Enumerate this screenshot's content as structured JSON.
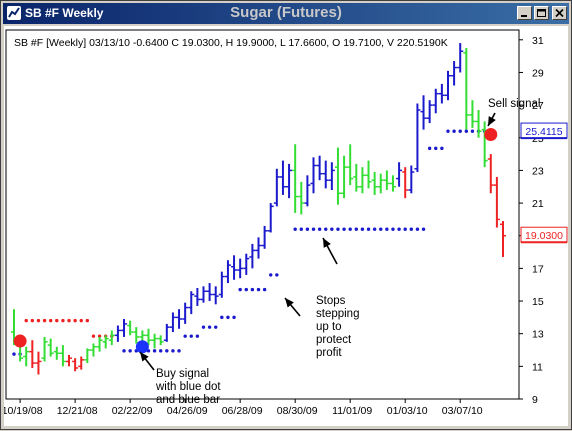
{
  "window": {
    "title": "SB #F Weekly",
    "center_title": "Sugar (Futures)",
    "icons": [
      "chart-app-icon",
      "minimize-icon",
      "maximize-icon",
      "close-icon"
    ]
  },
  "colors": {
    "up_bar": "#33dd33",
    "down_bar": "#ee2222",
    "neutral_bar": "#1a1acc",
    "stop_dot_blue": "#1a1acc",
    "stop_dot_red": "#ee2222",
    "sell_dot": "#ee2222",
    "buy_dot": "#1a33ff"
  },
  "chart_data": {
    "type": "ohlc",
    "title": "SB #F [Weekly] 03/13/10 -0.6400 C 19.0300, H 19.9000, L 17.6600, O 19.7100, V 220.5190K",
    "ylim": [
      9,
      31.6
    ],
    "y_ticks": [
      9,
      11,
      13,
      15,
      17,
      19,
      21,
      23,
      25,
      27,
      29,
      31
    ],
    "x_tick_labels": [
      "10/19/08",
      "12/21/08",
      "02/22/09",
      "04/26/09",
      "06/28/09",
      "08/30/09",
      "11/01/09",
      "01/03/10",
      "03/07/10"
    ],
    "price_tags": [
      {
        "label": "25.4115",
        "value": 25.41,
        "color": "#1a1acc"
      },
      {
        "label": "19.0300",
        "value": 19.03,
        "color": "#ee2222"
      }
    ],
    "bars": [
      {
        "o": 13.1,
        "h": 14.5,
        "l": 12.3,
        "c": 12.6,
        "color": "green"
      },
      {
        "o": 12.6,
        "h": 12.9,
        "l": 11.3,
        "c": 11.5,
        "color": "green"
      },
      {
        "o": 11.6,
        "h": 12.2,
        "l": 11.0,
        "c": 11.9,
        "color": "green"
      },
      {
        "o": 11.9,
        "h": 12.6,
        "l": 10.9,
        "c": 11.2,
        "color": "red"
      },
      {
        "o": 11.2,
        "h": 11.9,
        "l": 10.5,
        "c": 11.3,
        "color": "red"
      },
      {
        "o": 11.5,
        "h": 12.8,
        "l": 11.3,
        "c": 12.5,
        "color": "green"
      },
      {
        "o": 12.3,
        "h": 12.7,
        "l": 11.6,
        "c": 11.8,
        "color": "green"
      },
      {
        "o": 11.9,
        "h": 12.2,
        "l": 11.4,
        "c": 11.8,
        "color": "green"
      },
      {
        "o": 11.8,
        "h": 12.3,
        "l": 11.0,
        "c": 11.3,
        "color": "green"
      },
      {
        "o": 11.3,
        "h": 11.7,
        "l": 11.0,
        "c": 11.5,
        "color": "red"
      },
      {
        "o": 11.3,
        "h": 11.5,
        "l": 10.7,
        "c": 10.9,
        "color": "red"
      },
      {
        "o": 11.0,
        "h": 11.6,
        "l": 10.8,
        "c": 11.4,
        "color": "red"
      },
      {
        "o": 11.4,
        "h": 12.1,
        "l": 11.2,
        "c": 12.0,
        "color": "green"
      },
      {
        "o": 12.0,
        "h": 12.4,
        "l": 11.6,
        "c": 12.2,
        "color": "green"
      },
      {
        "o": 12.2,
        "h": 12.8,
        "l": 11.9,
        "c": 12.6,
        "color": "green"
      },
      {
        "o": 12.5,
        "h": 12.9,
        "l": 12.1,
        "c": 12.7,
        "color": "green"
      },
      {
        "o": 12.6,
        "h": 13.2,
        "l": 12.3,
        "c": 12.9,
        "color": "green"
      },
      {
        "o": 12.9,
        "h": 13.5,
        "l": 12.5,
        "c": 13.2,
        "color": "blue"
      },
      {
        "o": 13.2,
        "h": 13.9,
        "l": 12.8,
        "c": 13.6,
        "color": "blue"
      },
      {
        "o": 13.5,
        "h": 13.8,
        "l": 12.9,
        "c": 13.1,
        "color": "green"
      },
      {
        "o": 13.1,
        "h": 13.4,
        "l": 12.4,
        "c": 12.8,
        "color": "green"
      },
      {
        "o": 12.8,
        "h": 13.2,
        "l": 12.3,
        "c": 12.9,
        "color": "green"
      },
      {
        "o": 12.9,
        "h": 13.3,
        "l": 12.3,
        "c": 12.6,
        "color": "green"
      },
      {
        "o": 12.6,
        "h": 13.0,
        "l": 12.1,
        "c": 12.7,
        "color": "green"
      },
      {
        "o": 12.7,
        "h": 12.9,
        "l": 12.3,
        "c": 12.5,
        "color": "green"
      },
      {
        "o": 12.6,
        "h": 13.6,
        "l": 12.5,
        "c": 13.4,
        "color": "blue"
      },
      {
        "o": 13.4,
        "h": 14.3,
        "l": 13.1,
        "c": 14.0,
        "color": "blue"
      },
      {
        "o": 14.0,
        "h": 14.5,
        "l": 13.3,
        "c": 13.9,
        "color": "blue"
      },
      {
        "o": 13.9,
        "h": 14.9,
        "l": 13.6,
        "c": 14.6,
        "color": "blue"
      },
      {
        "o": 14.6,
        "h": 15.6,
        "l": 14.2,
        "c": 15.4,
        "color": "blue"
      },
      {
        "o": 15.3,
        "h": 15.8,
        "l": 14.7,
        "c": 15.1,
        "color": "blue"
      },
      {
        "o": 15.1,
        "h": 15.9,
        "l": 14.9,
        "c": 15.6,
        "color": "blue"
      },
      {
        "o": 15.6,
        "h": 16.1,
        "l": 15.0,
        "c": 15.4,
        "color": "blue"
      },
      {
        "o": 15.4,
        "h": 15.9,
        "l": 14.8,
        "c": 15.3,
        "color": "blue"
      },
      {
        "o": 15.4,
        "h": 16.8,
        "l": 15.2,
        "c": 16.5,
        "color": "blue"
      },
      {
        "o": 16.5,
        "h": 17.5,
        "l": 16.1,
        "c": 17.2,
        "color": "blue"
      },
      {
        "o": 17.1,
        "h": 17.8,
        "l": 16.3,
        "c": 16.9,
        "color": "blue"
      },
      {
        "o": 16.9,
        "h": 17.6,
        "l": 16.4,
        "c": 17.0,
        "color": "blue"
      },
      {
        "o": 17.0,
        "h": 17.9,
        "l": 16.6,
        "c": 17.6,
        "color": "blue"
      },
      {
        "o": 17.7,
        "h": 18.5,
        "l": 17.0,
        "c": 18.1,
        "color": "blue"
      },
      {
        "o": 18.1,
        "h": 18.9,
        "l": 17.6,
        "c": 18.4,
        "color": "blue"
      },
      {
        "o": 18.4,
        "h": 19.6,
        "l": 18.2,
        "c": 19.3,
        "color": "blue"
      },
      {
        "o": 19.3,
        "h": 21.0,
        "l": 19.2,
        "c": 20.8,
        "color": "blue"
      },
      {
        "o": 21.0,
        "h": 23.1,
        "l": 20.8,
        "c": 22.6,
        "color": "blue"
      },
      {
        "o": 22.6,
        "h": 23.6,
        "l": 21.5,
        "c": 22.0,
        "color": "blue"
      },
      {
        "o": 22.0,
        "h": 23.4,
        "l": 21.3,
        "c": 23.0,
        "color": "blue"
      },
      {
        "o": 23.0,
        "h": 24.6,
        "l": 20.4,
        "c": 21.4,
        "color": "green"
      },
      {
        "o": 21.4,
        "h": 22.3,
        "l": 20.3,
        "c": 21.0,
        "color": "green"
      },
      {
        "o": 21.0,
        "h": 22.7,
        "l": 20.8,
        "c": 22.1,
        "color": "blue"
      },
      {
        "o": 22.2,
        "h": 23.8,
        "l": 21.6,
        "c": 23.3,
        "color": "blue"
      },
      {
        "o": 23.3,
        "h": 23.9,
        "l": 22.4,
        "c": 22.8,
        "color": "blue"
      },
      {
        "o": 22.8,
        "h": 23.6,
        "l": 21.9,
        "c": 22.4,
        "color": "blue"
      },
      {
        "o": 22.4,
        "h": 23.5,
        "l": 21.8,
        "c": 23.0,
        "color": "blue"
      },
      {
        "o": 23.2,
        "h": 24.4,
        "l": 20.9,
        "c": 21.6,
        "color": "green"
      },
      {
        "o": 21.6,
        "h": 23.9,
        "l": 21.3,
        "c": 23.2,
        "color": "green"
      },
      {
        "o": 23.2,
        "h": 24.6,
        "l": 22.1,
        "c": 22.5,
        "color": "green"
      },
      {
        "o": 22.6,
        "h": 23.4,
        "l": 21.7,
        "c": 22.0,
        "color": "green"
      },
      {
        "o": 22.0,
        "h": 23.2,
        "l": 21.6,
        "c": 22.7,
        "color": "green"
      },
      {
        "o": 22.7,
        "h": 23.6,
        "l": 21.9,
        "c": 22.3,
        "color": "green"
      },
      {
        "o": 22.4,
        "h": 22.9,
        "l": 21.5,
        "c": 22.0,
        "color": "green"
      },
      {
        "o": 22.0,
        "h": 22.8,
        "l": 21.6,
        "c": 22.4,
        "color": "green"
      },
      {
        "o": 22.4,
        "h": 23.0,
        "l": 21.8,
        "c": 22.2,
        "color": "green"
      },
      {
        "o": 22.2,
        "h": 22.7,
        "l": 21.7,
        "c": 22.0,
        "color": "green"
      },
      {
        "o": 22.5,
        "h": 23.5,
        "l": 22.0,
        "c": 23.0,
        "color": "blue"
      },
      {
        "o": 22.9,
        "h": 23.2,
        "l": 21.3,
        "c": 21.8,
        "color": "red"
      },
      {
        "o": 21.8,
        "h": 23.3,
        "l": 21.6,
        "c": 22.9,
        "color": "blue"
      },
      {
        "o": 23.1,
        "h": 27.1,
        "l": 22.9,
        "c": 26.7,
        "color": "blue"
      },
      {
        "o": 26.6,
        "h": 27.6,
        "l": 25.5,
        "c": 26.2,
        "color": "blue"
      },
      {
        "o": 26.2,
        "h": 27.3,
        "l": 25.9,
        "c": 27.0,
        "color": "blue"
      },
      {
        "o": 27.0,
        "h": 28.0,
        "l": 26.5,
        "c": 27.7,
        "color": "blue"
      },
      {
        "o": 27.7,
        "h": 28.3,
        "l": 27.1,
        "c": 27.6,
        "color": "blue"
      },
      {
        "o": 27.6,
        "h": 29.1,
        "l": 27.3,
        "c": 28.8,
        "color": "blue"
      },
      {
        "o": 28.8,
        "h": 29.7,
        "l": 28.2,
        "c": 29.3,
        "color": "blue"
      },
      {
        "o": 29.3,
        "h": 30.8,
        "l": 29.0,
        "c": 30.3,
        "color": "blue"
      },
      {
        "o": 30.2,
        "h": 30.5,
        "l": 25.5,
        "c": 26.4,
        "color": "green"
      },
      {
        "o": 26.4,
        "h": 27.3,
        "l": 25.6,
        "c": 26.0,
        "color": "green"
      },
      {
        "o": 26.0,
        "h": 26.7,
        "l": 25.0,
        "c": 25.4,
        "color": "green"
      },
      {
        "o": 25.5,
        "h": 26.0,
        "l": 23.2,
        "c": 23.6,
        "color": "green"
      },
      {
        "o": 23.7,
        "h": 24.0,
        "l": 21.6,
        "c": 22.1,
        "color": "red"
      },
      {
        "o": 22.1,
        "h": 22.6,
        "l": 19.5,
        "c": 20.0,
        "color": "red"
      },
      {
        "o": 19.7,
        "h": 19.9,
        "l": 17.7,
        "c": 19.0,
        "color": "red"
      }
    ],
    "stop_runs": [
      {
        "from": 0,
        "to": 1,
        "value": 11.75,
        "color": "blue"
      },
      {
        "from": 2,
        "to": 12,
        "value": 13.8,
        "color": "red"
      },
      {
        "from": 13,
        "to": 16,
        "value": 12.85,
        "color": "red"
      },
      {
        "from": 18,
        "to": 27,
        "value": 11.95,
        "color": "blue"
      },
      {
        "from": 28,
        "to": 30,
        "value": 12.85,
        "color": "blue"
      },
      {
        "from": 31,
        "to": 33,
        "value": 13.4,
        "color": "blue"
      },
      {
        "from": 34,
        "to": 36,
        "value": 14.0,
        "color": "blue"
      },
      {
        "from": 37,
        "to": 41,
        "value": 15.7,
        "color": "blue"
      },
      {
        "from": 42,
        "to": 43,
        "value": 16.6,
        "color": "blue"
      },
      {
        "from": 46,
        "to": 67,
        "value": 19.4,
        "color": "blue"
      },
      {
        "from": 68,
        "to": 70,
        "value": 24.35,
        "color": "blue"
      },
      {
        "from": 71,
        "to": 77,
        "value": 25.4,
        "color": "blue"
      }
    ],
    "signals": [
      {
        "type": "sell",
        "bar": 1,
        "value": 12.55,
        "color": "#ee2222"
      },
      {
        "type": "buy",
        "bar": 21,
        "value": 12.2,
        "color": "#1a33ff"
      },
      {
        "type": "sell",
        "bar": 78,
        "value": 25.2,
        "color": "#ee2222"
      }
    ],
    "annotations": [
      {
        "id": "buy",
        "lines": [
          "Buy signal",
          "with blue dot",
          "and blue bar"
        ]
      },
      {
        "id": "stops",
        "lines": [
          "Stops",
          "stepping",
          "up to",
          "protect",
          "profit"
        ]
      },
      {
        "id": "sell",
        "lines": [
          "Sell signal"
        ]
      }
    ]
  }
}
